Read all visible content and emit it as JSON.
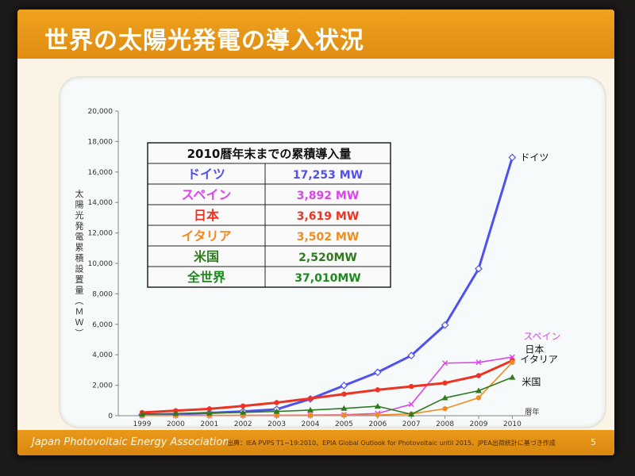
{
  "slide": {
    "title": "世界の太陽光発電の導入状況",
    "footer_brand": "Japan Photovoltaic Energy Association",
    "footer_source": "出典：IEA PVPS T1−19:2010、EPIA Global Outlook for Photovoltaic until 2015、JPEA出荷統計に基づき作成",
    "page_number": "5"
  },
  "colors": {
    "germany": "#5050f0",
    "spain": "#dd44ee",
    "japan": "#ee3322",
    "italy": "#f08c20",
    "usa": "#2f7a1e",
    "world": "#1c8a1c",
    "table_text": "#111111"
  },
  "chart_data": {
    "type": "line",
    "ylabel": "太陽光発電累積設置量（ＭＷ）",
    "xlabel": "暦年",
    "ylim": [
      0,
      20000
    ],
    "yticks": [
      "0",
      "2,000",
      "4,000",
      "6,000",
      "8,000",
      "10,000",
      "12,000",
      "14,000",
      "16,000",
      "18,000",
      "20,000"
    ],
    "x": [
      "1999",
      "2000",
      "2001",
      "2002",
      "2003",
      "2004",
      "2005",
      "2006",
      "2007",
      "2008",
      "2009",
      "2010"
    ],
    "series": [
      {
        "name": "ドイツ",
        "color": "#5050f0",
        "marker": "diamond",
        "values": [
          70,
          100,
          180,
          280,
          420,
          1100,
          1980,
          2850,
          3950,
          5950,
          9650,
          16950
        ]
      },
      {
        "name": "スペイン",
        "color": "#dd44ee",
        "marker": "cross",
        "values": [
          10,
          15,
          20,
          25,
          30,
          40,
          60,
          150,
          750,
          3450,
          3500,
          3850
        ]
      },
      {
        "name": "日本",
        "color": "#ee3322",
        "marker": "circle",
        "values": [
          210,
          330,
          450,
          640,
          860,
          1130,
          1420,
          1700,
          1920,
          2150,
          2630,
          3620
        ]
      },
      {
        "name": "イタリア",
        "color": "#f08c20",
        "marker": "circle",
        "values": [
          15,
          18,
          20,
          22,
          26,
          30,
          37,
          50,
          120,
          460,
          1180,
          3500
        ]
      },
      {
        "name": "米国",
        "color": "#2f7a1e",
        "marker": "triangle",
        "values": [
          100,
          140,
          170,
          220,
          280,
          370,
          480,
          620,
          90,
          1170,
          1640,
          2520
        ]
      }
    ],
    "table": {
      "title": "2010暦年末までの累積導入量",
      "rows": [
        {
          "name": "ドイツ",
          "value": "17,253 MW",
          "color": "#5050f0"
        },
        {
          "name": "スペイン",
          "value": "3,892 MW",
          "color": "#dd44ee"
        },
        {
          "name": "日本",
          "value": "3,619 MW",
          "color": "#ee3322"
        },
        {
          "name": "イタリア",
          "value": "3,502 MW",
          "color": "#f08c20"
        },
        {
          "name": "米国",
          "value": "2,520MW",
          "color": "#2f7a1e"
        },
        {
          "name": "全世界",
          "value": "37,010MW",
          "color": "#1c8a1c"
        }
      ]
    }
  }
}
